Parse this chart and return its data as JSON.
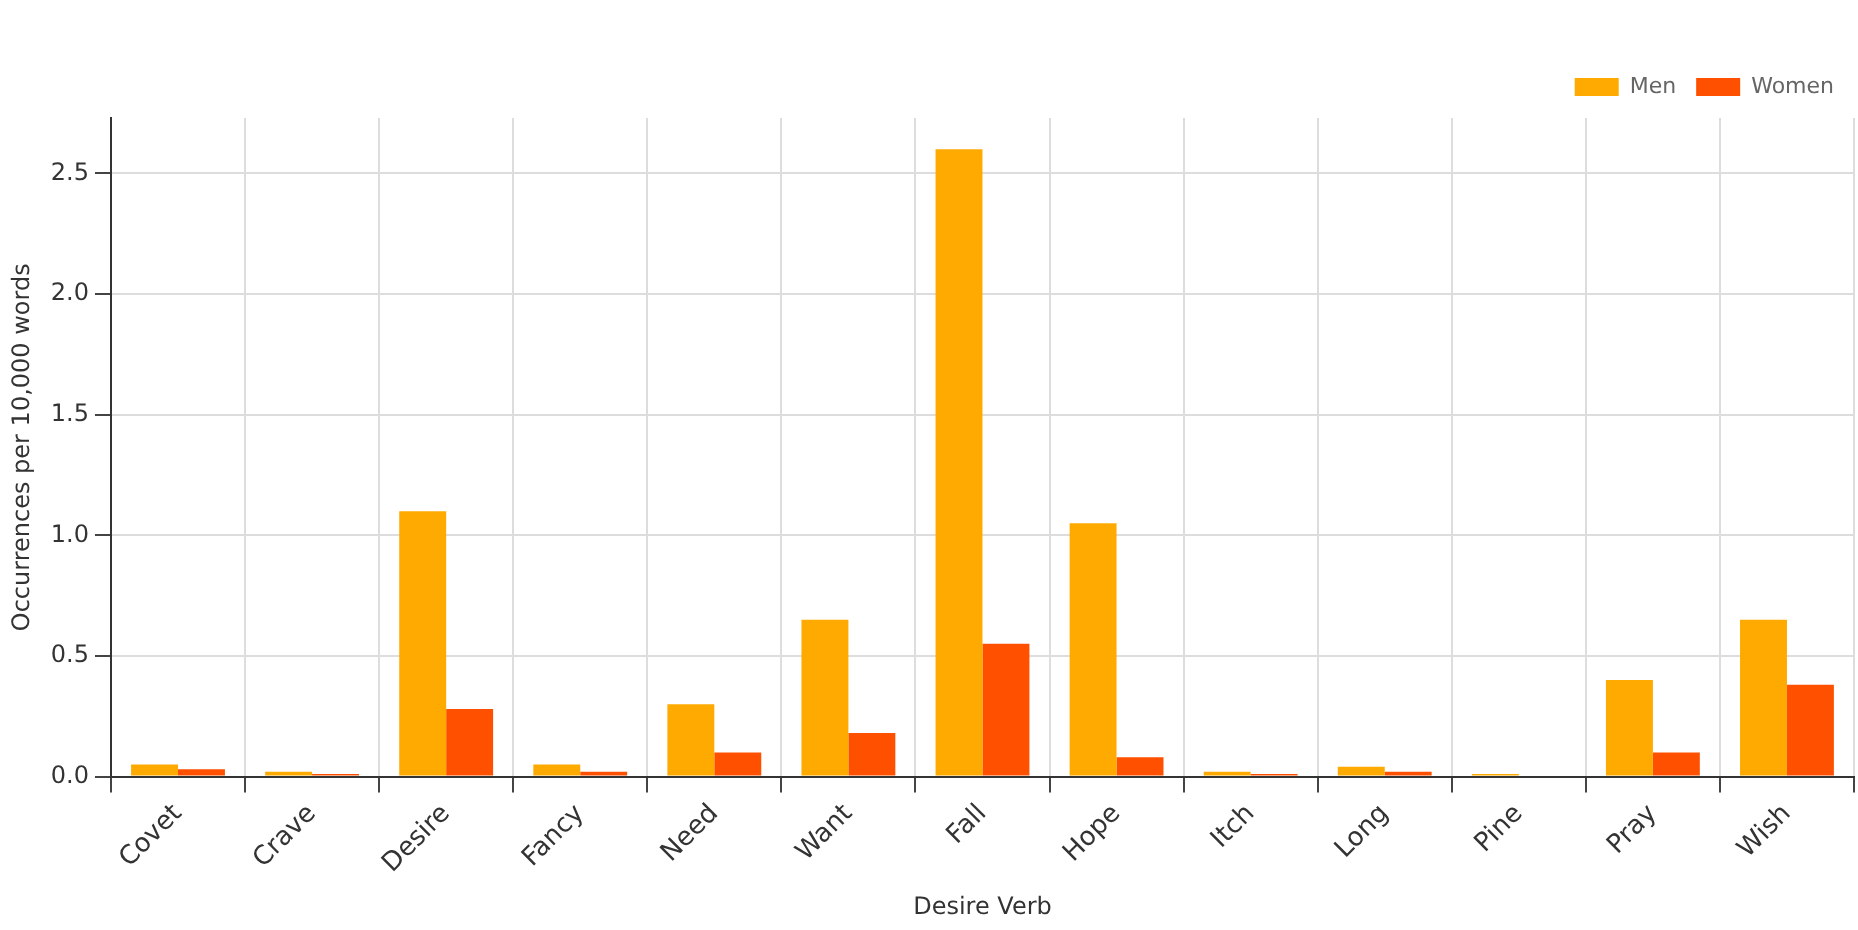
{
  "chart_data": {
    "type": "bar",
    "xlabel": "Desire Verb",
    "ylabel": "Occurrences per 10,000 words",
    "categories": [
      "Covet",
      "Crave",
      "Desire",
      "Fancy",
      "Need",
      "Want",
      "Fall",
      "Hope",
      "Itch",
      "Long",
      "Pine",
      "Pray",
      "Wish"
    ],
    "series": [
      {
        "name": "Men",
        "color": "#ffaa00",
        "values": [
          0.05,
          0.02,
          1.1,
          0.05,
          0.3,
          0.65,
          2.6,
          1.05,
          0.02,
          0.04,
          0.01,
          0.4,
          0.65
        ]
      },
      {
        "name": "Women",
        "color": "#ff5000",
        "values": [
          0.03,
          0.01,
          0.28,
          0.02,
          0.1,
          0.18,
          0.55,
          0.08,
          0.01,
          0.02,
          0,
          0.1,
          0.38
        ]
      }
    ],
    "ylim": [
      0,
      2.73
    ],
    "yticks": [
      {
        "value": 0,
        "label": "0.0"
      },
      {
        "value": 0.5,
        "label": "0.5"
      },
      {
        "value": 1,
        "label": "1.0"
      },
      {
        "value": 1.5,
        "label": "1.5"
      },
      {
        "value": 2,
        "label": "2.0"
      },
      {
        "value": 2.5,
        "label": "2.5"
      }
    ],
    "grid": true,
    "legend": "top right"
  }
}
